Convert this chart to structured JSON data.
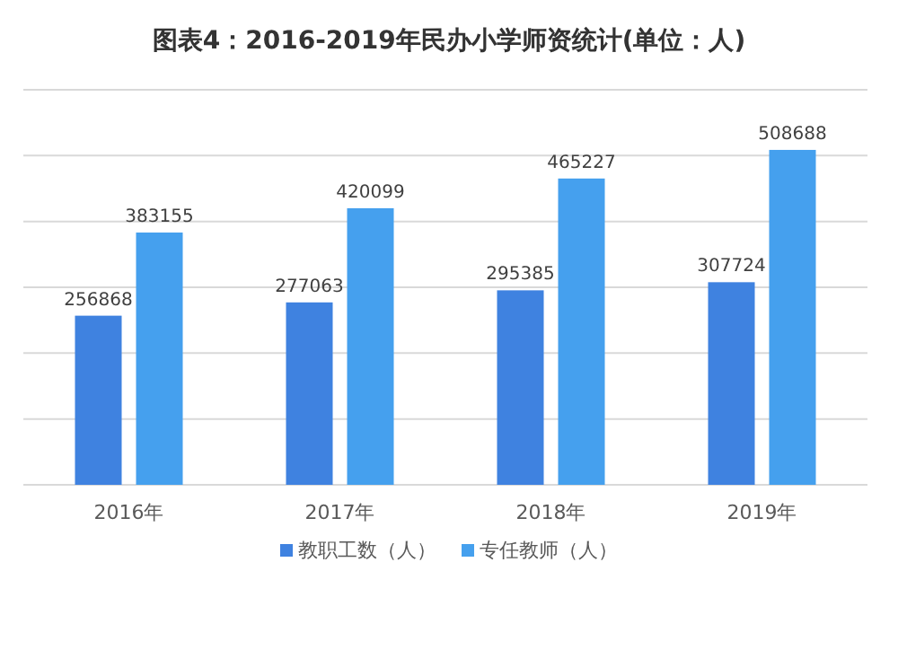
{
  "chart_data": {
    "type": "bar",
    "title": "图表4：2016-2019年民办小学师资统计(单位：人)",
    "categories": [
      "2016年",
      "2017年",
      "2018年",
      "2019年"
    ],
    "series": [
      {
        "name": "教职工数（人）",
        "color": "#3f82e0",
        "values": [
          256868,
          277063,
          295385,
          307724
        ]
      },
      {
        "name": "专任教师（人）",
        "color": "#45a0ee",
        "values": [
          383155,
          420099,
          465227,
          508688
        ]
      }
    ],
    "ylim": [
      0,
      600000
    ],
    "yticks": [
      {
        "value": 0,
        "label": null
      },
      {
        "value": 100000,
        "label": null
      },
      {
        "value": 200000,
        "label": null
      },
      {
        "value": 300000,
        "label": null
      },
      {
        "value": 400000,
        "label": null
      },
      {
        "value": 500000,
        "label": null
      },
      {
        "value": 600000,
        "label": null
      }
    ],
    "tick_labels": "x",
    "grid": "y",
    "data_labels": true,
    "legend": "bottom"
  }
}
